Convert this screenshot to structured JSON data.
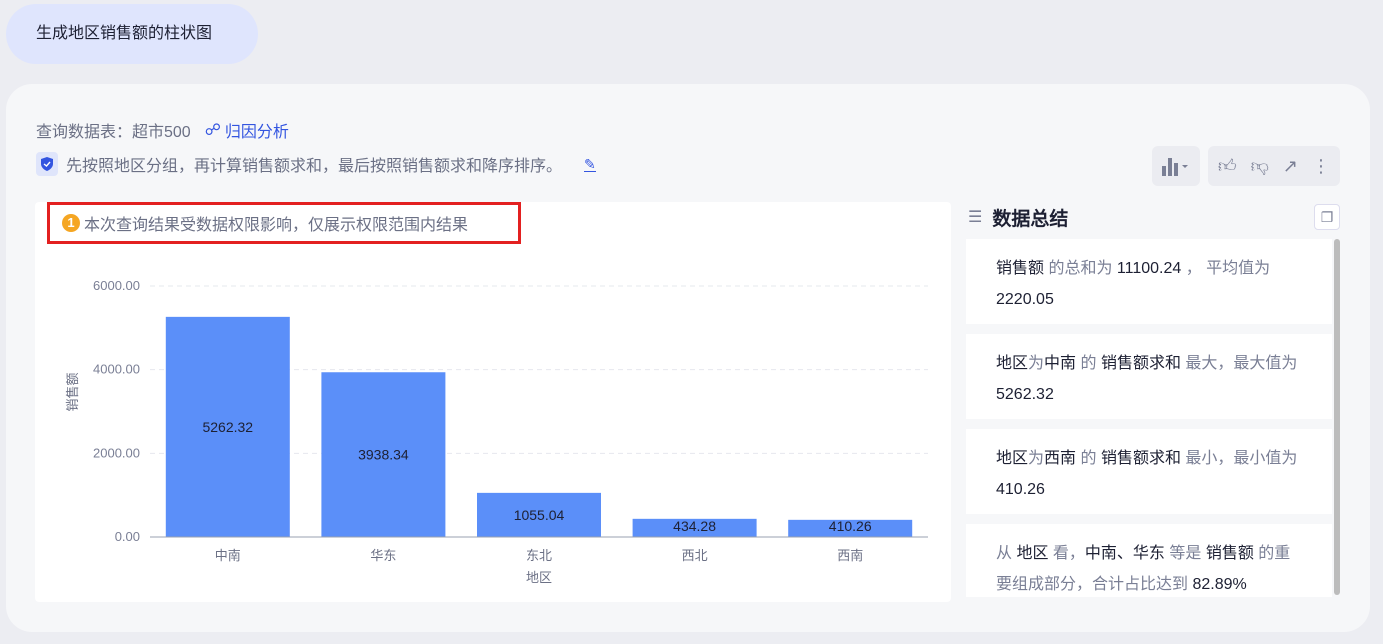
{
  "prompt": "生成地区销售额的柱状图",
  "meta": {
    "table_label": "查询数据表：超市500",
    "attribution_link": "归因分析"
  },
  "description": "先按照地区分组，再计算销售额求和，最后按照销售额求和降序排序。",
  "warning": {
    "badge": "1",
    "text": "本次查询结果受数据权限影响，仅展示权限范围内结果"
  },
  "toolbar": {
    "icons": [
      "bar-chart-icon",
      "thumbs-up-icon",
      "thumbs-down-icon",
      "share-icon",
      "more-icon"
    ]
  },
  "chart_data": {
    "type": "bar",
    "categories": [
      "中南",
      "华东",
      "东北",
      "西北",
      "西南"
    ],
    "values": [
      5262.32,
      3938.34,
      1055.04,
      434.28,
      410.26
    ],
    "value_labels": [
      "5262.32",
      "3938.34",
      "1055.04",
      "434.28",
      "410.26"
    ],
    "xlabel": "地区",
    "ylabel": "销售额",
    "ylim": [
      0,
      6000
    ],
    "yticks": [
      "0.00",
      "2000.00",
      "4000.00",
      "6000.00"
    ],
    "ytick_values": [
      0,
      2000,
      4000,
      6000
    ],
    "grid": true,
    "bar_color": "#5b8ff9"
  },
  "summary": {
    "title": "数据总结",
    "items": [
      [
        {
          "t": "销售额",
          "d": 1
        },
        {
          "t": " 的总和为 ",
          "d": 0
        },
        {
          "t": "11100.24",
          "d": 1
        },
        {
          "t": " ， 平均值为 ",
          "d": 0
        },
        {
          "t": "2220.05",
          "d": 1
        }
      ],
      [
        {
          "t": "地区",
          "d": 1
        },
        {
          "t": "为",
          "d": 0
        },
        {
          "t": "中南",
          "d": 1
        },
        {
          "t": " 的 ",
          "d": 0
        },
        {
          "t": "销售额求和",
          "d": 1
        },
        {
          "t": " 最大，最大值为 ",
          "d": 0
        },
        {
          "t": "5262.32",
          "d": 1
        }
      ],
      [
        {
          "t": "地区",
          "d": 1
        },
        {
          "t": "为",
          "d": 0
        },
        {
          "t": "西南",
          "d": 1
        },
        {
          "t": " 的 ",
          "d": 0
        },
        {
          "t": "销售额求和",
          "d": 1
        },
        {
          "t": " 最小，最小值为 ",
          "d": 0
        },
        {
          "t": "410.26",
          "d": 1
        }
      ],
      [
        {
          "t": "从 ",
          "d": 0
        },
        {
          "t": "地区",
          "d": 1
        },
        {
          "t": " 看，",
          "d": 0
        },
        {
          "t": "中南、华东",
          "d": 1
        },
        {
          "t": " 等是 ",
          "d": 0
        },
        {
          "t": "销售额",
          "d": 1
        },
        {
          "t": " 的重要组成部分，合计占比达到 ",
          "d": 0
        },
        {
          "t": "82.89%",
          "d": 1
        }
      ]
    ]
  }
}
